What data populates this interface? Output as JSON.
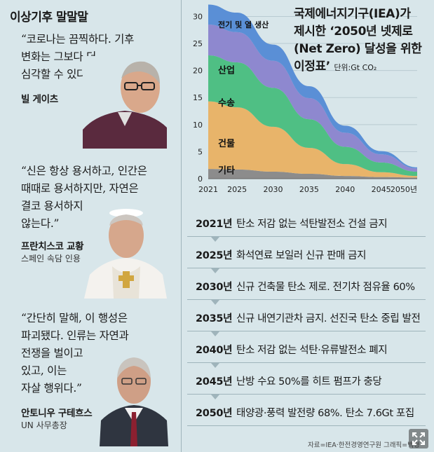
{
  "left": {
    "title": "이상기후 말말말",
    "quotes": [
      {
        "text": "“코로나는 끔찍하다. 기후\n변화는 그보다 더\n심각할 수 있다.”",
        "name": "빌 게이츠",
        "role": ""
      },
      {
        "text": "“신은 항상 용서하고, 인간은\n때때로 용서하지만, 자연은\n결코 용서하지\n않는다.”",
        "name": "프란치스코 교황",
        "role": "스페인 속담 인용"
      },
      {
        "text": "“간단히 말해, 이 행성은\n파괴됐다. 인류는 자연과\n전쟁을 벌이고\n있고, 이는\n자살 행위다.”",
        "name": "안토니우 구테흐스",
        "role": "UN 사무총장"
      }
    ]
  },
  "chart": {
    "title": "국제에너지기구(IEA)가\n제시한 ‘2050년 넷제로\n(Net Zero) 달성을 위한\n이정표’",
    "unit": "단위:Gt CO₂"
  },
  "chart_data": {
    "type": "area",
    "stacked": true,
    "x": [
      2021,
      2025,
      2030,
      2035,
      2040,
      2045,
      2050
    ],
    "xticklabels": [
      "2021",
      "2025",
      "2030",
      "2035",
      "2040",
      "2045",
      "2050년"
    ],
    "ylim": [
      0,
      32
    ],
    "yticks": [
      0,
      5,
      10,
      15,
      20,
      25,
      30
    ],
    "series": [
      {
        "name": "기타",
        "color": "#8c8c8c",
        "values": [
          1.8,
          1.7,
          1.3,
          0.9,
          0.5,
          0.3,
          0.2
        ]
      },
      {
        "name": "건물",
        "color": "#e8b46a",
        "values": [
          12.5,
          11.5,
          8.3,
          4.8,
          2.2,
          0.9,
          0.3
        ]
      },
      {
        "name": "수송",
        "color": "#4fbf84",
        "values": [
          8.5,
          8.3,
          7.2,
          5.3,
          3.2,
          1.8,
          0.8
        ]
      },
      {
        "name": "산업",
        "color": "#8e88cf",
        "values": [
          5.7,
          5.6,
          5.0,
          3.9,
          2.6,
          1.5,
          0.6
        ]
      },
      {
        "name": "전기 및 열 생산",
        "color": "#5a8fd6",
        "values": [
          3.7,
          3.6,
          3.0,
          2.2,
          1.3,
          0.6,
          0.2
        ]
      }
    ]
  },
  "timeline": [
    {
      "year": "2021년",
      "text": "탄소 저감 없는 석탄발전소 건설 금지"
    },
    {
      "year": "2025년",
      "text": "화석연료 보일러 신규 판매 금지"
    },
    {
      "year": "2030년",
      "text": "신규 건축물 탄소 제로. 전기차 점유율 60%"
    },
    {
      "year": "2035년",
      "text": "신규 내연기관차 금지. 선진국 탄소 중립 발전"
    },
    {
      "year": "2040년",
      "text": "탄소 저감 없는 석탄·유류발전소 폐지"
    },
    {
      "year": "2045년",
      "text": "난방 수요 50%를 히트 펌프가 충당"
    },
    {
      "year": "2050년",
      "text": "태양광·풍력 발전량 68%. 탄소 7.6Gt 포집"
    }
  ],
  "source": "자료=IEA·한전경영연구원    그래픽=백형",
  "colors": {
    "background": "#d8e6ea",
    "divider": "#9fb4bb"
  }
}
